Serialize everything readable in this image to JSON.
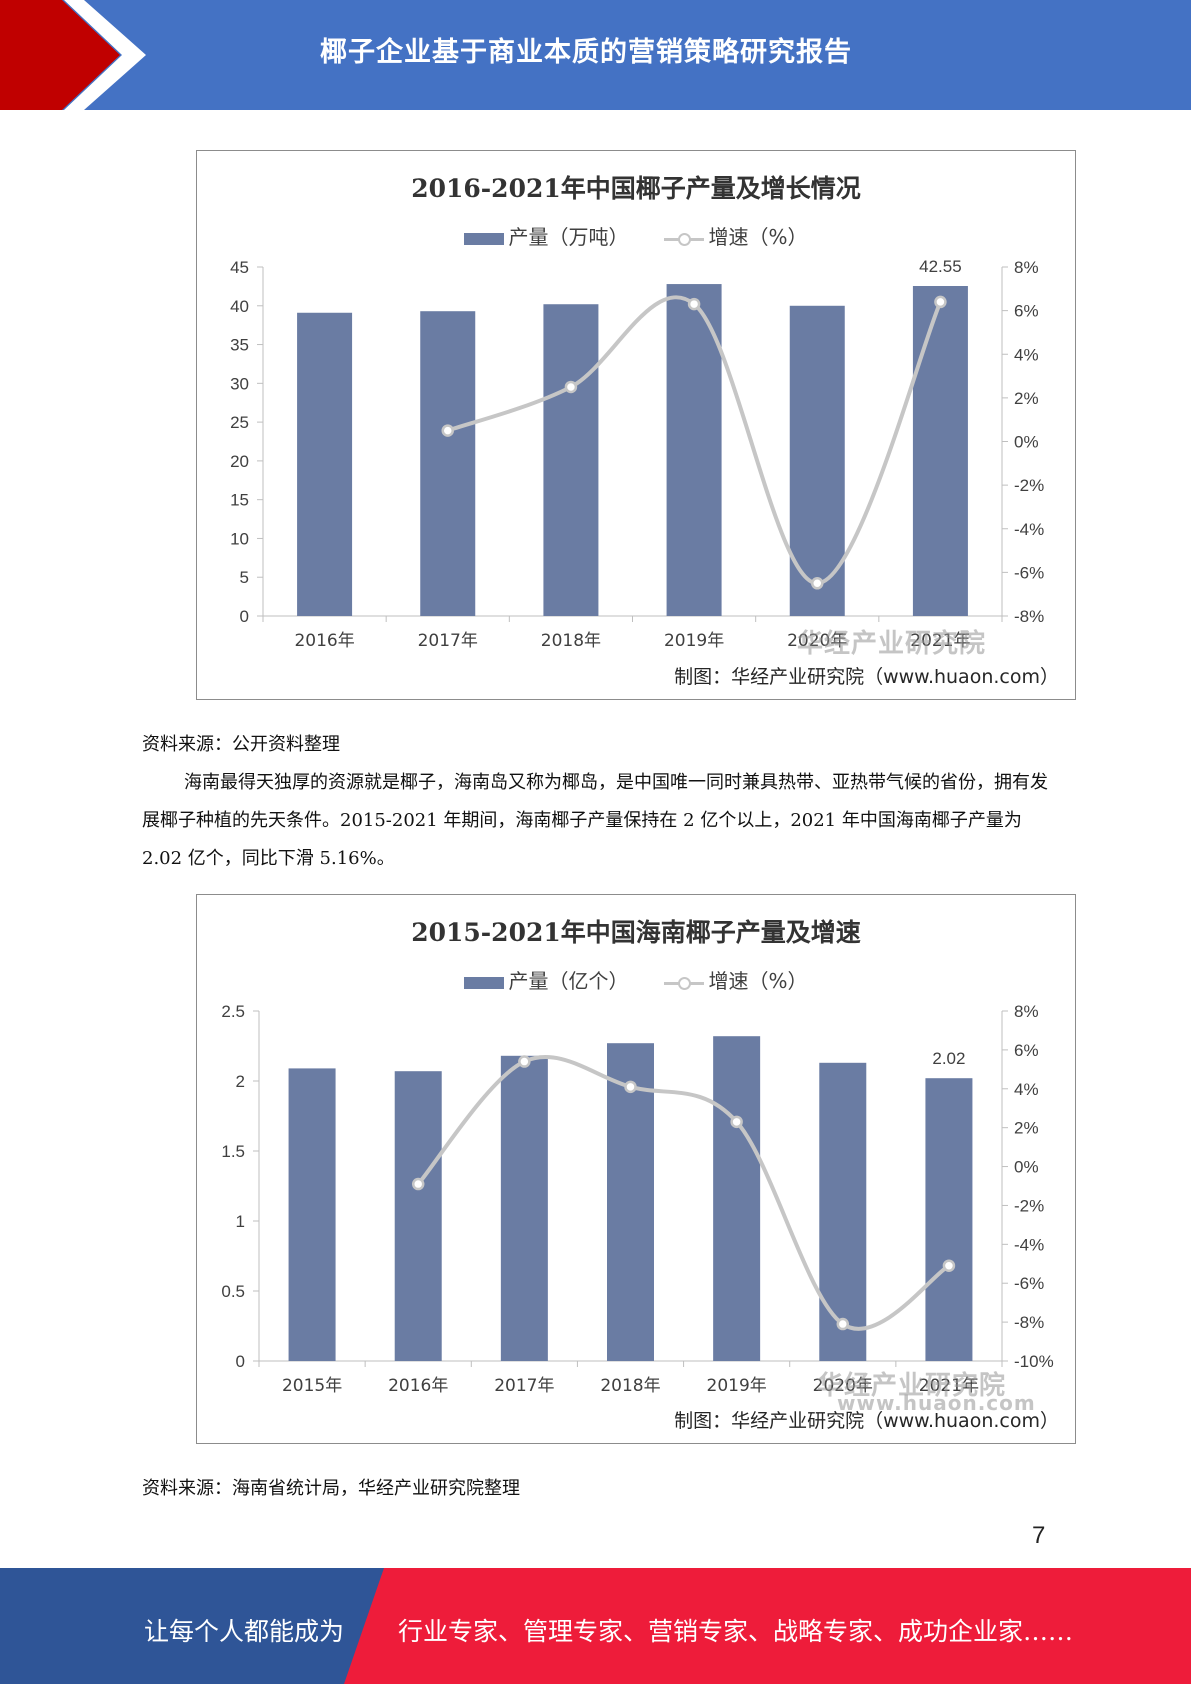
{
  "header": {
    "title": "椰子企业基于商业本质的营销策略研究报告"
  },
  "chart_data": [
    {
      "type": "bar+line",
      "title": "2016-2021年中国椰子产量及增长情况",
      "categories": [
        "2016年",
        "2017年",
        "2018年",
        "2019年",
        "2020年",
        "2021年"
      ],
      "series": [
        {
          "name": "产量（万吨）",
          "type": "bar",
          "axis": "left",
          "values": [
            39.1,
            39.3,
            40.2,
            42.8,
            40.0,
            42.55
          ]
        },
        {
          "name": "增速（%）",
          "type": "line",
          "axis": "right",
          "values": [
            null,
            0.5,
            2.5,
            6.3,
            -6.5,
            6.4
          ]
        }
      ],
      "data_labels": [
        {
          "category": "2021年",
          "text": "42.55"
        }
      ],
      "y_left": {
        "min": 0,
        "max": 45,
        "ticks": [
          "0",
          "5",
          "10",
          "15",
          "20",
          "25",
          "30",
          "35",
          "40",
          "45"
        ]
      },
      "y_right": {
        "min": -8,
        "max": 8,
        "ticks": [
          "-8%",
          "-6%",
          "-4%",
          "-2%",
          "0%",
          "2%",
          "4%",
          "6%",
          "8%"
        ]
      },
      "credit": "制图：华经产业研究院（www.huaon.com）",
      "watermark": "华经产业研究院"
    },
    {
      "type": "bar+line",
      "title": "2015-2021年中国海南椰子产量及增速",
      "categories": [
        "2015年",
        "2016年",
        "2017年",
        "2018年",
        "2019年",
        "2020年",
        "2021年"
      ],
      "series": [
        {
          "name": "产量（亿个）",
          "type": "bar",
          "axis": "left",
          "values": [
            2.09,
            2.07,
            2.18,
            2.27,
            2.32,
            2.13,
            2.02
          ]
        },
        {
          "name": "增速（%）",
          "type": "line",
          "axis": "right",
          "values": [
            null,
            -0.9,
            5.4,
            4.1,
            2.3,
            -8.1,
            -5.1
          ]
        }
      ],
      "data_labels": [
        {
          "category": "2021年",
          "text": "2.02"
        }
      ],
      "y_left": {
        "min": 0,
        "max": 2.5,
        "ticks": [
          "0",
          "0.5",
          "1",
          "1.5",
          "2",
          "2.5"
        ]
      },
      "y_right": {
        "min": -10,
        "max": 8,
        "ticks": [
          "-10%",
          "-8%",
          "-6%",
          "-4%",
          "-2%",
          "0%",
          "2%",
          "4%",
          "6%",
          "8%"
        ]
      },
      "credit": "制图：华经产业研究院（www.huaon.com）",
      "watermark": "华经产业研究院",
      "watermark_url": "www.huaon.com"
    }
  ],
  "source1": "资料来源：公开资料整理",
  "paragraph": "海南最得天独厚的资源就是椰子，海南岛又称为椰岛，是中国唯一同时兼具热带、亚热带气候的省份，拥有发展椰子种植的先天条件。2015-2021 年期间，海南椰子产量保持在 2 亿个以上，2021 年中国海南椰子产量为 2.02 亿个，同比下滑 5.16%。",
  "source2": "资料来源：海南省统计局，华经产业研究院整理",
  "page_number": "7",
  "footer": {
    "left": "让每个人都能成为",
    "right": "行业专家、管理专家、营销专家、战略专家、成功企业家……"
  },
  "colors": {
    "header": "#4472c4",
    "bar": "#6a7ca3",
    "line": "#c6c6c6",
    "footer_left": "#2f5597",
    "footer_right": "#ee1c3a",
    "red": "#c00000"
  }
}
